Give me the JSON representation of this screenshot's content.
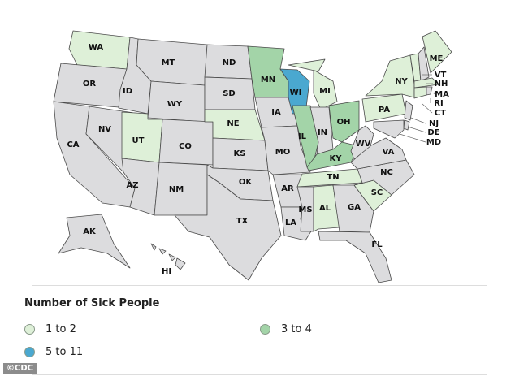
{
  "colors": {
    "none": "#dcdcde",
    "c1": "#def0d8",
    "c2": "#a3d4a8",
    "c3": "#4aa8d0"
  },
  "legend": {
    "title": "Number of Sick People",
    "items": [
      {
        "label": "1 to 2",
        "key": "c1"
      },
      {
        "label": "3 to 4",
        "key": "c2"
      },
      {
        "label": "5 to 11",
        "key": "c3"
      }
    ]
  },
  "states": {
    "WA": "c1",
    "OR": "none",
    "CA": "none",
    "ID": "none",
    "NV": "none",
    "MT": "none",
    "WY": "none",
    "UT": "c1",
    "AZ": "none",
    "CO": "none",
    "NM": "none",
    "ND": "none",
    "SD": "none",
    "NE": "c1",
    "KS": "none",
    "OK": "none",
    "TX": "none",
    "MN": "c2",
    "IA": "none",
    "MO": "none",
    "AR": "none",
    "LA": "none",
    "WI": "c3",
    "IL": "c2",
    "MI": "c1",
    "IN": "none",
    "OH": "c2",
    "KY": "c2",
    "TN": "c1",
    "MS": "none",
    "AL": "c1",
    "GA": "none",
    "FL": "none",
    "SC": "c1",
    "NC": "none",
    "VA": "none",
    "WV": "none",
    "PA": "c1",
    "NY": "c1",
    "VT": "c1",
    "NH": "none",
    "ME": "c1",
    "MA": "c1",
    "CT": "c1",
    "RI": "none",
    "NJ": "none",
    "DE": "none",
    "MD": "none",
    "AK": "none",
    "HI": "none"
  },
  "credit": "©CDC"
}
